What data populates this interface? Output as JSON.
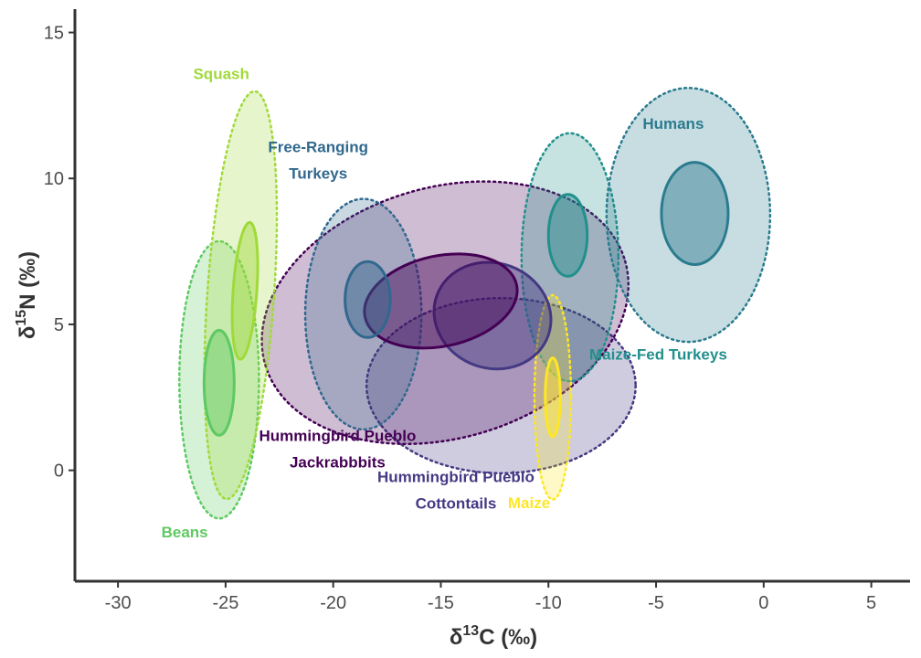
{
  "chart_data": {
    "type": "scatter",
    "subtype": "isotope-ellipses",
    "title": "",
    "xlabel_main": "δ",
    "xlabel_sup": "13",
    "xlabel_rest": "C (‰)",
    "ylabel_main": "δ",
    "ylabel_sup": "15",
    "ylabel_rest": "N (‰)",
    "xlim": [
      -32,
      6.8
    ],
    "ylim": [
      -3.8,
      15.8
    ],
    "x_ticks": [
      -30,
      -25,
      -20,
      -15,
      -10,
      -5,
      0,
      5
    ],
    "x_tick_labels": [
      "-30",
      "-25",
      "-20",
      "-15",
      "-10",
      "-5",
      "0",
      "5"
    ],
    "y_ticks": [
      0,
      5,
      10,
      15
    ],
    "y_tick_labels": [
      "0",
      "5",
      "10",
      "15"
    ],
    "grid": false,
    "legend": "none",
    "groups": [
      {
        "name": "Hummingbird Pueblo Cottontails",
        "label_lines": [
          "Hummingbird Pueblo",
          "Cottontails"
        ],
        "label_pos": [
          -14.3,
          -0.4
        ],
        "color": "#443983",
        "outer": {
          "cx": -12.2,
          "cy": 2.9,
          "rx": 6.25,
          "ry": 3.0,
          "angle": 0
        },
        "core": {
          "cx": -12.6,
          "cy": 5.3,
          "rx": 2.75,
          "ry": 1.8,
          "angle": -20
        }
      },
      {
        "name": "Hummingbird Pueblo Jackrabbbits",
        "label_lines": [
          "Hummingbird Pueblo",
          "Jackrabbbits"
        ],
        "label_pos": [
          -19.8,
          1.0
        ],
        "color": "#440154",
        "outer": {
          "cx": -14.8,
          "cy": 5.4,
          "rx": 8.7,
          "ry": 4.3,
          "angle": 16
        },
        "core": {
          "cx": -15.0,
          "cy": 5.8,
          "rx": 3.6,
          "ry": 1.55,
          "angle": 12
        }
      },
      {
        "name": "Free-Ranging Turkeys",
        "label_lines": [
          "Free-Ranging",
          "Turkeys"
        ],
        "label_pos": [
          -20.7,
          10.9
        ],
        "color": "#31688E",
        "outer": {
          "cx": -18.6,
          "cy": 5.35,
          "rx": 2.7,
          "ry": 3.95,
          "angle": 0
        },
        "core": {
          "cx": -18.4,
          "cy": 5.85,
          "rx": 1.05,
          "ry": 1.3,
          "angle": 0
        }
      },
      {
        "name": "Maize-Fed Turkeys",
        "label_lines": [
          "Maize-Fed Turkeys"
        ],
        "label_pos": [
          -4.9,
          3.8
        ],
        "color": "#21908C",
        "outer": {
          "cx": -9.0,
          "cy": 7.3,
          "rx": 2.25,
          "ry": 4.25,
          "angle": 0
        },
        "core": {
          "cx": -9.1,
          "cy": 8.05,
          "rx": 0.9,
          "ry": 1.4,
          "angle": 0
        }
      },
      {
        "name": "Humans",
        "label_lines": [
          "Humans"
        ],
        "label_pos": [
          -4.2,
          11.7
        ],
        "color": "#2A7B8E",
        "outer": {
          "cx": -3.5,
          "cy": 8.75,
          "rx": 3.8,
          "ry": 4.35,
          "angle": 0
        },
        "core": {
          "cx": -3.2,
          "cy": 8.8,
          "rx": 1.55,
          "ry": 1.75,
          "angle": 0
        }
      },
      {
        "name": "Beans",
        "label_lines": [
          "Beans"
        ],
        "label_pos": [
          -26.9,
          -2.3
        ],
        "color": "#5EC962",
        "outer": {
          "cx": -25.3,
          "cy": 3.1,
          "rx": 1.85,
          "ry": 4.75,
          "angle": 0
        },
        "core": {
          "cx": -25.3,
          "cy": 3.0,
          "rx": 0.7,
          "ry": 1.8,
          "angle": 0
        }
      },
      {
        "name": "Squash",
        "label_lines": [
          "Squash"
        ],
        "label_pos": [
          -25.2,
          13.4
        ],
        "color": "#A0DA39",
        "outer": {
          "cx": -24.3,
          "cy": 6.0,
          "rx": 1.55,
          "ry": 7.0,
          "angle": -4
        },
        "core": {
          "cx": -24.1,
          "cy": 6.15,
          "rx": 0.55,
          "ry": 2.35,
          "angle": -4
        }
      },
      {
        "name": "Maize",
        "label_lines": [
          "Maize"
        ],
        "label_pos": [
          -10.9,
          -1.3
        ],
        "color": "#FDE725",
        "outer": {
          "cx": -9.8,
          "cy": 2.5,
          "rx": 0.85,
          "ry": 3.5,
          "angle": 0
        },
        "core": {
          "cx": -9.8,
          "cy": 2.5,
          "rx": 0.35,
          "ry": 1.35,
          "angle": 0
        }
      }
    ]
  }
}
